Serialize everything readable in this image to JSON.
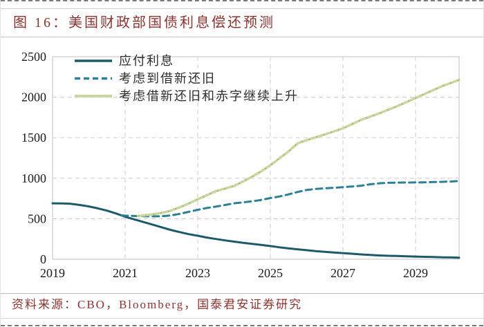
{
  "figure": {
    "title": "图 16：美国财政部国债利息偿还预测",
    "source": "资料来源：CBO，Bloomberg，国泰君安证券研究"
  },
  "colors": {
    "title_text": "#8a3330",
    "source_text": "#8a3330",
    "axis_label_text": "#1a1a1a",
    "legend_text": "#2e2e2e",
    "grid_line": "#d4d4d4",
    "plot_border": "#bfbfbf",
    "series_interest_payable": "#1c5a6a",
    "series_rollover": "#2c7f95",
    "series_rollover_deficit": "#c9d6a0",
    "series_rollover_deficit_dots": "#9aaf6a"
  },
  "chart_data": {
    "type": "line",
    "title": "图 16：美国财政部国债利息偿还预测",
    "xlabel": "",
    "ylabel": "",
    "xlim": [
      2019,
      2030.2
    ],
    "ylim": [
      0,
      2500
    ],
    "x_ticks": [
      2019,
      2021,
      2023,
      2025,
      2027,
      2029
    ],
    "y_ticks": [
      0,
      500,
      1000,
      1500,
      2000,
      2500
    ],
    "grid": true,
    "legend_position": "top-left",
    "series": [
      {
        "name": "应付利息",
        "color": "#1c5a6a",
        "dashed": false,
        "width": 3,
        "points": [
          [
            2019,
            690
          ],
          [
            2019.25,
            689
          ],
          [
            2019.5,
            684
          ],
          [
            2019.75,
            670
          ],
          [
            2020,
            652
          ],
          [
            2020.25,
            628
          ],
          [
            2020.5,
            600
          ],
          [
            2020.75,
            565
          ],
          [
            2021,
            525
          ],
          [
            2021.25,
            492
          ],
          [
            2021.5,
            460
          ],
          [
            2021.75,
            428
          ],
          [
            2022,
            395
          ],
          [
            2022.25,
            363
          ],
          [
            2022.5,
            335
          ],
          [
            2022.75,
            310
          ],
          [
            2023,
            290
          ],
          [
            2023.25,
            268
          ],
          [
            2023.5,
            250
          ],
          [
            2023.75,
            233
          ],
          [
            2024,
            218
          ],
          [
            2024.25,
            203
          ],
          [
            2024.5,
            190
          ],
          [
            2024.75,
            177
          ],
          [
            2025,
            163
          ],
          [
            2025.25,
            148
          ],
          [
            2025.5,
            135
          ],
          [
            2025.75,
            123
          ],
          [
            2026,
            112
          ],
          [
            2026.25,
            101
          ],
          [
            2026.5,
            92
          ],
          [
            2026.75,
            84
          ],
          [
            2027,
            76
          ],
          [
            2027.25,
            68
          ],
          [
            2027.5,
            60
          ],
          [
            2027.75,
            53
          ],
          [
            2028,
            47
          ],
          [
            2028.25,
            43
          ],
          [
            2028.5,
            40
          ],
          [
            2028.75,
            36
          ],
          [
            2029,
            33
          ],
          [
            2029.25,
            30
          ],
          [
            2029.5,
            27
          ],
          [
            2029.75,
            24
          ],
          [
            2030,
            22
          ],
          [
            2030.2,
            20
          ]
        ]
      },
      {
        "name": "考虑到借新还旧",
        "color": "#2c7f95",
        "dashed": true,
        "width": 3,
        "points": [
          [
            2020.9,
            542
          ],
          [
            2021,
            538
          ],
          [
            2021.25,
            534
          ],
          [
            2021.5,
            531
          ],
          [
            2021.75,
            530
          ],
          [
            2022,
            531
          ],
          [
            2022.25,
            540
          ],
          [
            2022.5,
            560
          ],
          [
            2022.75,
            585
          ],
          [
            2023,
            610
          ],
          [
            2023.25,
            632
          ],
          [
            2023.5,
            650
          ],
          [
            2023.75,
            670
          ],
          [
            2024,
            690
          ],
          [
            2024.25,
            702
          ],
          [
            2024.5,
            715
          ],
          [
            2024.75,
            732
          ],
          [
            2025,
            755
          ],
          [
            2025.25,
            775
          ],
          [
            2025.5,
            800
          ],
          [
            2025.75,
            830
          ],
          [
            2026,
            855
          ],
          [
            2026.25,
            868
          ],
          [
            2026.5,
            875
          ],
          [
            2026.75,
            882
          ],
          [
            2027,
            890
          ],
          [
            2027.25,
            898
          ],
          [
            2027.5,
            908
          ],
          [
            2027.75,
            925
          ],
          [
            2028,
            938
          ],
          [
            2028.25,
            944
          ],
          [
            2028.5,
            946
          ],
          [
            2028.75,
            947
          ],
          [
            2029,
            948
          ],
          [
            2029.25,
            950
          ],
          [
            2029.5,
            953
          ],
          [
            2029.75,
            956
          ],
          [
            2030,
            960
          ],
          [
            2030.2,
            966
          ]
        ]
      },
      {
        "name": "考虑借新还旧和赤字继续上升",
        "color": "#c9d6a0",
        "dot_overlay": "#9aaf6a",
        "dashed": false,
        "width": 3.5,
        "points": [
          [
            2021.35,
            533
          ],
          [
            2021.5,
            540
          ],
          [
            2021.75,
            553
          ],
          [
            2022,
            572
          ],
          [
            2022.25,
            598
          ],
          [
            2022.5,
            640
          ],
          [
            2022.75,
            688
          ],
          [
            2023,
            740
          ],
          [
            2023.25,
            790
          ],
          [
            2023.5,
            840
          ],
          [
            2023.75,
            872
          ],
          [
            2024,
            905
          ],
          [
            2024.25,
            960
          ],
          [
            2024.5,
            1020
          ],
          [
            2024.75,
            1085
          ],
          [
            2025,
            1160
          ],
          [
            2025.25,
            1245
          ],
          [
            2025.5,
            1330
          ],
          [
            2025.75,
            1430
          ],
          [
            2026,
            1470
          ],
          [
            2026.25,
            1505
          ],
          [
            2026.5,
            1540
          ],
          [
            2026.75,
            1578
          ],
          [
            2027,
            1615
          ],
          [
            2027.25,
            1668
          ],
          [
            2027.5,
            1720
          ],
          [
            2027.75,
            1760
          ],
          [
            2028,
            1800
          ],
          [
            2028.25,
            1845
          ],
          [
            2028.5,
            1890
          ],
          [
            2028.75,
            1940
          ],
          [
            2029,
            1990
          ],
          [
            2029.25,
            2040
          ],
          [
            2029.5,
            2090
          ],
          [
            2029.75,
            2140
          ],
          [
            2030,
            2180
          ],
          [
            2030.2,
            2215
          ]
        ]
      }
    ]
  }
}
